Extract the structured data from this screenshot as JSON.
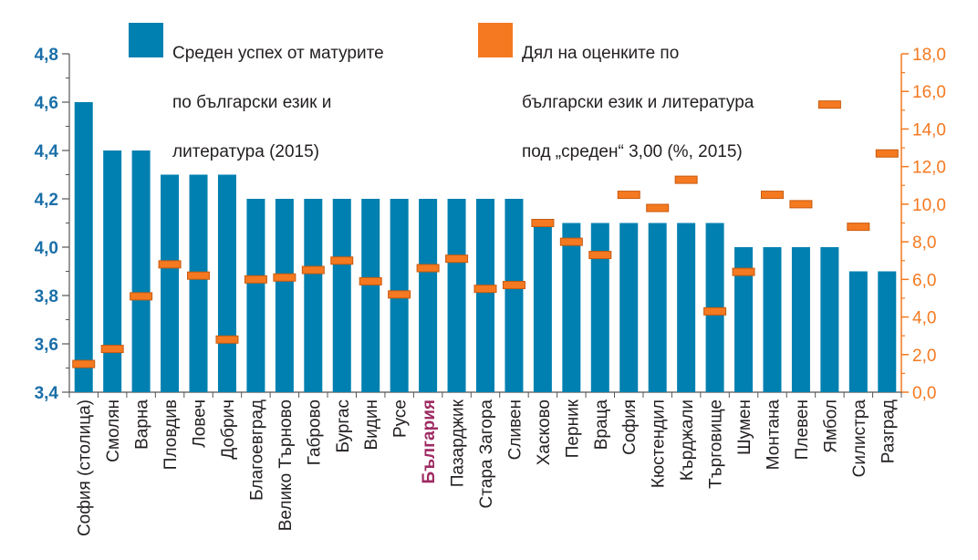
{
  "chart_data": {
    "type": "bar",
    "categories": [
      "София (столица)",
      "Смолян",
      "Варна",
      "Пловдив",
      "Ловеч",
      "Добрич",
      "Благоевград",
      "Велико Търново",
      "Габрово",
      "Бургас",
      "Видин",
      "Русе",
      "България",
      "Пазарджик",
      "Стара Загора",
      "Сливен",
      "Хасково",
      "Перник",
      "Враца",
      "София",
      "Кюстендил",
      "Кърджали",
      "Търговище",
      "Шумен",
      "Монтана",
      "Плевен",
      "Ямбол",
      "Силистра",
      "Разград"
    ],
    "highlight_category": "България",
    "series": [
      {
        "name": [
          "Среден успех от матурите",
          "по български език и",
          "литература (2015)"
        ],
        "kind": "bar",
        "axis": "left",
        "values": [
          4.6,
          4.4,
          4.4,
          4.3,
          4.3,
          4.3,
          4.2,
          4.2,
          4.2,
          4.2,
          4.2,
          4.2,
          4.2,
          4.2,
          4.2,
          4.2,
          4.1,
          4.1,
          4.1,
          4.1,
          4.1,
          4.1,
          4.1,
          4.0,
          4.0,
          4.0,
          4.0,
          3.9,
          3.9
        ]
      },
      {
        "name": [
          "Дял на оценките по",
          "български език и литература",
          "под „среден“ 3,00 (%, 2015)"
        ],
        "kind": "marker",
        "axis": "right",
        "values": [
          1.5,
          2.3,
          5.1,
          6.8,
          6.2,
          2.8,
          6.0,
          6.1,
          6.5,
          7.0,
          5.9,
          5.2,
          6.6,
          7.1,
          5.5,
          5.7,
          9.0,
          8.0,
          7.3,
          10.5,
          9.8,
          11.3,
          4.3,
          6.4,
          10.5,
          10.0,
          15.3,
          8.8,
          12.7
        ]
      }
    ],
    "y_left": {
      "min": 3.4,
      "max": 4.8,
      "ticks": [
        "3,4",
        "3,6",
        "3,8",
        "4,0",
        "4,2",
        "4,4",
        "4,6",
        "4,8"
      ]
    },
    "y_right": {
      "min": 0,
      "max": 18,
      "ticks": [
        "0,0",
        "2,0",
        "4,0",
        "6,0",
        "8,0",
        "10,0",
        "12,0",
        "14,0",
        "16,0",
        "18,0"
      ]
    },
    "colors": {
      "bar": "#0080b0",
      "marker": "#f47920",
      "marker_edge": "#c85a10",
      "left_axis": "#1a6fa8",
      "right_axis": "#f47920",
      "highlight_label": "#9e2b63",
      "label": "#231f20"
    },
    "legend_position": "top"
  }
}
